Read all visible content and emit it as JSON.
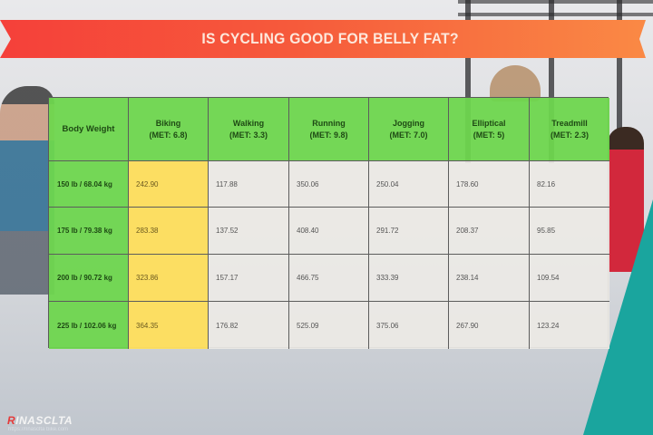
{
  "banner": {
    "title": "IS CYCLING GOOD FOR BELLY FAT?"
  },
  "table": {
    "headers": [
      {
        "name": "Body Weight",
        "met": ""
      },
      {
        "name": "Biking",
        "met": "(MET: 6.8)"
      },
      {
        "name": "Walking",
        "met": "(MET: 3.3)"
      },
      {
        "name": "Running",
        "met": "(MET: 9.8)"
      },
      {
        "name": "Jogging",
        "met": "(MET: 7.0)"
      },
      {
        "name": "Elliptical",
        "met": "(MET: 5)"
      },
      {
        "name": "Treadmill",
        "met": "(MET: 2.3)"
      }
    ],
    "rows": [
      {
        "weight": "150 lb / 68.04 kg",
        "values": [
          "242.90",
          "117.88",
          "350.06",
          "250.04",
          "178.60",
          "82.16"
        ]
      },
      {
        "weight": "175 lb / 79.38 kg",
        "values": [
          "283.38",
          "137.52",
          "408.40",
          "291.72",
          "208.37",
          "95.85"
        ]
      },
      {
        "weight": "200 lb / 90.72 kg",
        "values": [
          "323.86",
          "157.17",
          "466.75",
          "333.39",
          "238.14",
          "109.54"
        ]
      },
      {
        "weight": "225 lb / 102.06 kg",
        "values": [
          "364.35",
          "176.82",
          "525.09",
          "375.06",
          "267.90",
          "123.24"
        ]
      }
    ]
  },
  "brand": {
    "logo_first": "R",
    "logo_rest": "INASCLTA",
    "url": "https://rinasclta bike.com"
  },
  "colors": {
    "banner_start": "#f5403a",
    "banner_end": "#fa8a45",
    "header_green": "#6ed64e",
    "biking_yellow": "#fdde5e",
    "cell_grey": "#ece9e5",
    "teal_accent": "#1aa59e"
  }
}
